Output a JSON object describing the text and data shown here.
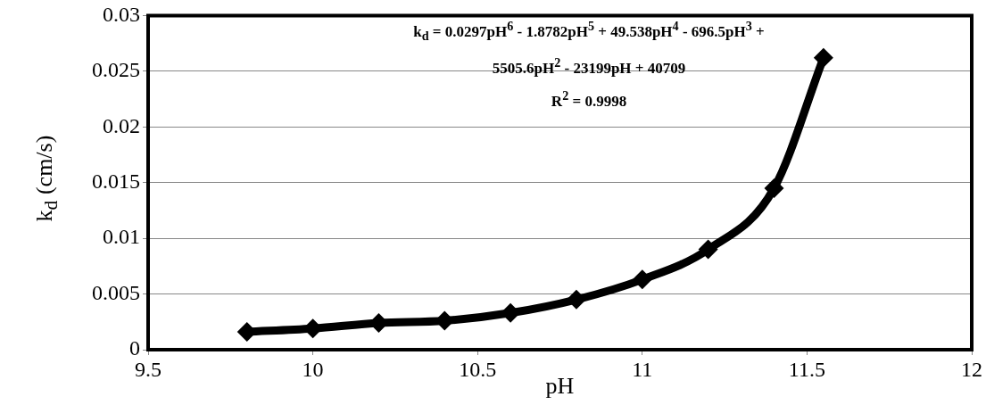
{
  "chart_data": {
    "type": "line",
    "xlabel": "pH",
    "ylabel": "k$_{d}$ (cm/s)",
    "x": [
      9.8,
      10.0,
      10.2,
      10.4,
      10.6,
      10.8,
      11.0,
      11.2,
      11.4,
      11.55
    ],
    "series": [
      {
        "color": "#000000",
        "values": [
          0.0016,
          0.0019,
          0.0024,
          0.0026,
          0.0033,
          0.0045,
          0.0063,
          0.009,
          0.0145,
          0.0262
        ]
      }
    ],
    "xlim": [
      9.5,
      12
    ],
    "xticks": [
      9.5,
      10,
      10.5,
      11,
      11.5,
      12
    ],
    "ylim": [
      0,
      0.03
    ],
    "yticks": [
      0,
      0.005,
      0.01,
      0.015,
      0.02,
      0.025,
      0.03
    ],
    "grid": "y",
    "marker": "diamond",
    "line_style": "solid",
    "legend": false,
    "annotations": [
      "k$_{d}$ = 0.0297pH$^{6}$ - 1.8782pH$^{5}$ + 49.538pH$^{4}$ - 696.5pH$^{3}$ + 5505.6pH$^{2}$ - 23199pH + 40709",
      "R$^{2}$ = 0.9998"
    ]
  }
}
